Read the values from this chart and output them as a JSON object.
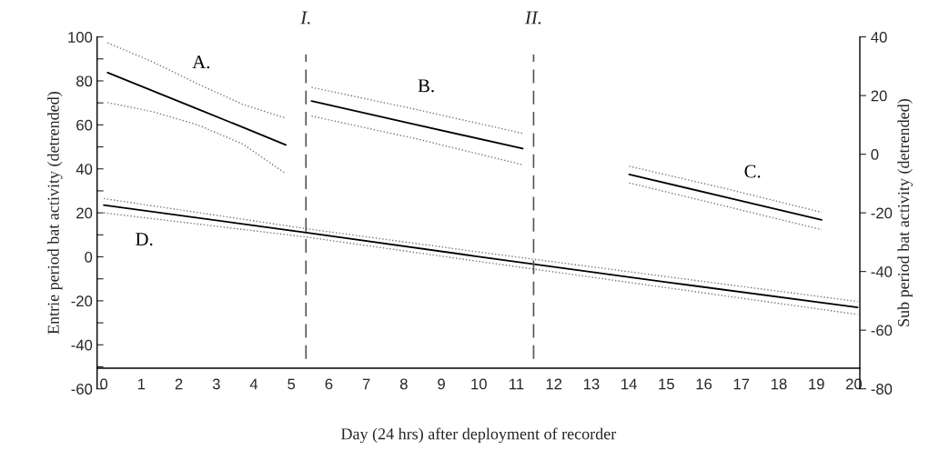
{
  "chart_data": {
    "type": "line",
    "xlabel": "Day (24 hrs) after deployment of recorder",
    "ylabel": "Entrie period bat activity (detrended)",
    "y2label": "Sub period bat activity (detrended)",
    "xlim": [
      -0.18,
      20.16
    ],
    "xticks": [
      0,
      1,
      2,
      3,
      4,
      5,
      6,
      7,
      8,
      9,
      10,
      11,
      12,
      13,
      14,
      15,
      16,
      17,
      18,
      19,
      20
    ],
    "ylim": [
      -60,
      100
    ],
    "yticks": [
      -60,
      {
        "value": -50,
        "label": null
      },
      -40,
      {
        "value": -30,
        "label": null
      },
      -20,
      {
        "value": -10,
        "label": null
      },
      0,
      {
        "value": 10,
        "label": null
      },
      20,
      {
        "value": 30,
        "label": null
      },
      40,
      {
        "value": 50,
        "label": null
      },
      60,
      {
        "value": 70,
        "label": null
      },
      80,
      {
        "value": 90,
        "label": null
      },
      100
    ],
    "y2lim": [
      -80,
      40
    ],
    "y2ticks": [
      -80,
      -60,
      -40,
      -20,
      0,
      20,
      40
    ],
    "grid": false,
    "legend": false,
    "line_style": "solid",
    "marker": "none",
    "series": [
      {
        "name": "A.",
        "axis": "y2",
        "color": "#000000",
        "x": [
          0.1,
          1.3,
          2.5,
          3.7,
          4.85
        ],
        "values": [
          27.8,
          21.6,
          15.4,
          9.2,
          3.2
        ]
      },
      {
        "axis": "y2",
        "color": "#777777",
        "line_style": "dotted",
        "x": [
          0.1,
          1.3,
          2.5,
          3.7,
          4.85
        ],
        "values": [
          38,
          31.5,
          24,
          17,
          12.3
        ]
      },
      {
        "axis": "y2",
        "color": "#777777",
        "line_style": "dotted",
        "x": [
          0.1,
          1.3,
          2.5,
          3.7,
          4.85
        ],
        "values": [
          17.6,
          14.5,
          10,
          3.5,
          -6.6
        ]
      },
      {
        "name": "B.",
        "axis": "y2",
        "color": "#000000",
        "x": [
          5.54,
          8.35,
          11.17
        ],
        "values": [
          18.1,
          10,
          1.9
        ]
      },
      {
        "axis": "y2",
        "color": "#777777",
        "line_style": "dotted",
        "x": [
          5.54,
          8.35,
          11.17
        ],
        "values": [
          22.8,
          15.2,
          7.1
        ]
      },
      {
        "axis": "y2",
        "color": "#777777",
        "line_style": "dotted",
        "x": [
          5.54,
          8.35,
          11.17
        ],
        "values": [
          13,
          5.2,
          -3.6
        ]
      },
      {
        "name": "C.",
        "axis": "y2",
        "color": "#000000",
        "x": [
          14.01,
          16.6,
          19.14
        ],
        "values": [
          -6.9,
          -14.7,
          -22.4
        ]
      },
      {
        "axis": "y2",
        "color": "#777777",
        "line_style": "dotted",
        "x": [
          14.01,
          16.6,
          19.14
        ],
        "values": [
          -4.1,
          -11.8,
          -19.8
        ]
      },
      {
        "axis": "y2",
        "color": "#777777",
        "line_style": "dotted",
        "x": [
          14.01,
          16.6,
          19.14
        ],
        "values": [
          -9.8,
          -17.8,
          -25.7
        ]
      },
      {
        "name": "D.",
        "color": "#000000",
        "x": [
          0,
          5.4,
          10,
          15,
          20.1
        ],
        "values": [
          23.5,
          11,
          0.1,
          -11.5,
          -23
        ]
      },
      {
        "color": "#777777",
        "line_style": "dotted",
        "x": [
          0,
          5.4,
          10,
          15,
          20.1
        ],
        "values": [
          26.5,
          12.8,
          2.2,
          -9,
          -20.3
        ]
      },
      {
        "color": "#777777",
        "line_style": "dotted",
        "x": [
          0,
          5.4,
          10,
          15,
          20.1
        ],
        "values": [
          20,
          9,
          -2.1,
          -14,
          -26.2
        ]
      }
    ],
    "ref_lines": [
      {
        "axis": "x",
        "value": 5.39,
        "label": "I.",
        "color": "#555555",
        "line_style": "dashed"
      },
      {
        "axis": "x",
        "value": 11.46,
        "label": "II.",
        "color": "#555555",
        "line_style": "dashed"
      }
    ]
  }
}
